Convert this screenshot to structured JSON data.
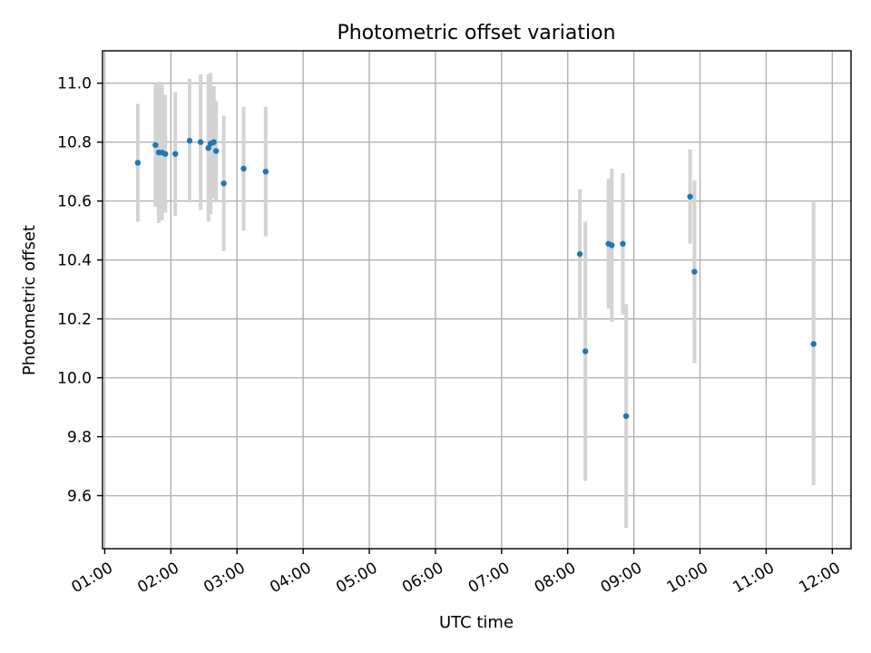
{
  "chart_data": {
    "type": "scatter",
    "title": "Photometric offset variation",
    "xlabel": "UTC time",
    "ylabel": "Photometric offset",
    "xlim": [
      "00:58",
      "12:17"
    ],
    "ylim": [
      9.42,
      11.11
    ],
    "grid": true,
    "x_ticks": [
      "01:00",
      "02:00",
      "03:00",
      "04:00",
      "05:00",
      "06:00",
      "07:00",
      "08:00",
      "09:00",
      "10:00",
      "11:00",
      "12:00"
    ],
    "y_ticks": [
      9.6,
      9.8,
      10.0,
      10.2,
      10.4,
      10.6,
      10.8,
      11.0
    ],
    "colors": {
      "points": "#1f77b4",
      "errorbars": "#d3d3d3",
      "grid": "#b0b0b0"
    },
    "series": [
      {
        "points": [
          {
            "x": "01:30",
            "y": 10.73,
            "err": 0.2
          },
          {
            "x": "01:46",
            "y": 10.79,
            "err": 0.21
          },
          {
            "x": "01:49",
            "y": 10.765,
            "err": 0.24
          },
          {
            "x": "01:52",
            "y": 10.765,
            "err": 0.23
          },
          {
            "x": "01:55",
            "y": 10.76,
            "err": 0.2
          },
          {
            "x": "02:04",
            "y": 10.76,
            "err": 0.21
          },
          {
            "x": "02:17",
            "y": 10.805,
            "err": 0.21
          },
          {
            "x": "02:27",
            "y": 10.8,
            "err": 0.23
          },
          {
            "x": "02:34",
            "y": 10.78,
            "err": 0.25
          },
          {
            "x": "02:36",
            "y": 10.795,
            "err": 0.24
          },
          {
            "x": "02:39",
            "y": 10.8,
            "err": 0.19
          },
          {
            "x": "02:41",
            "y": 10.77,
            "err": 0.17
          },
          {
            "x": "02:48",
            "y": 10.66,
            "err": 0.23
          },
          {
            "x": "03:06",
            "y": 10.71,
            "err": 0.21
          },
          {
            "x": "03:26",
            "y": 10.7,
            "err": 0.22
          },
          {
            "x": "08:11",
            "y": 10.42,
            "err": 0.22
          },
          {
            "x": "08:16",
            "y": 10.09,
            "err": 0.44
          },
          {
            "x": "08:37",
            "y": 10.455,
            "err": 0.22
          },
          {
            "x": "08:40",
            "y": 10.45,
            "err": 0.26
          },
          {
            "x": "08:50",
            "y": 10.455,
            "err": 0.24
          },
          {
            "x": "08:53",
            "y": 9.87,
            "err": 0.38
          },
          {
            "x": "09:51",
            "y": 10.615,
            "err": 0.16
          },
          {
            "x": "09:55",
            "y": 10.36,
            "err": 0.31
          },
          {
            "x": "11:43",
            "y": 10.115,
            "err": 0.48
          }
        ]
      }
    ]
  }
}
